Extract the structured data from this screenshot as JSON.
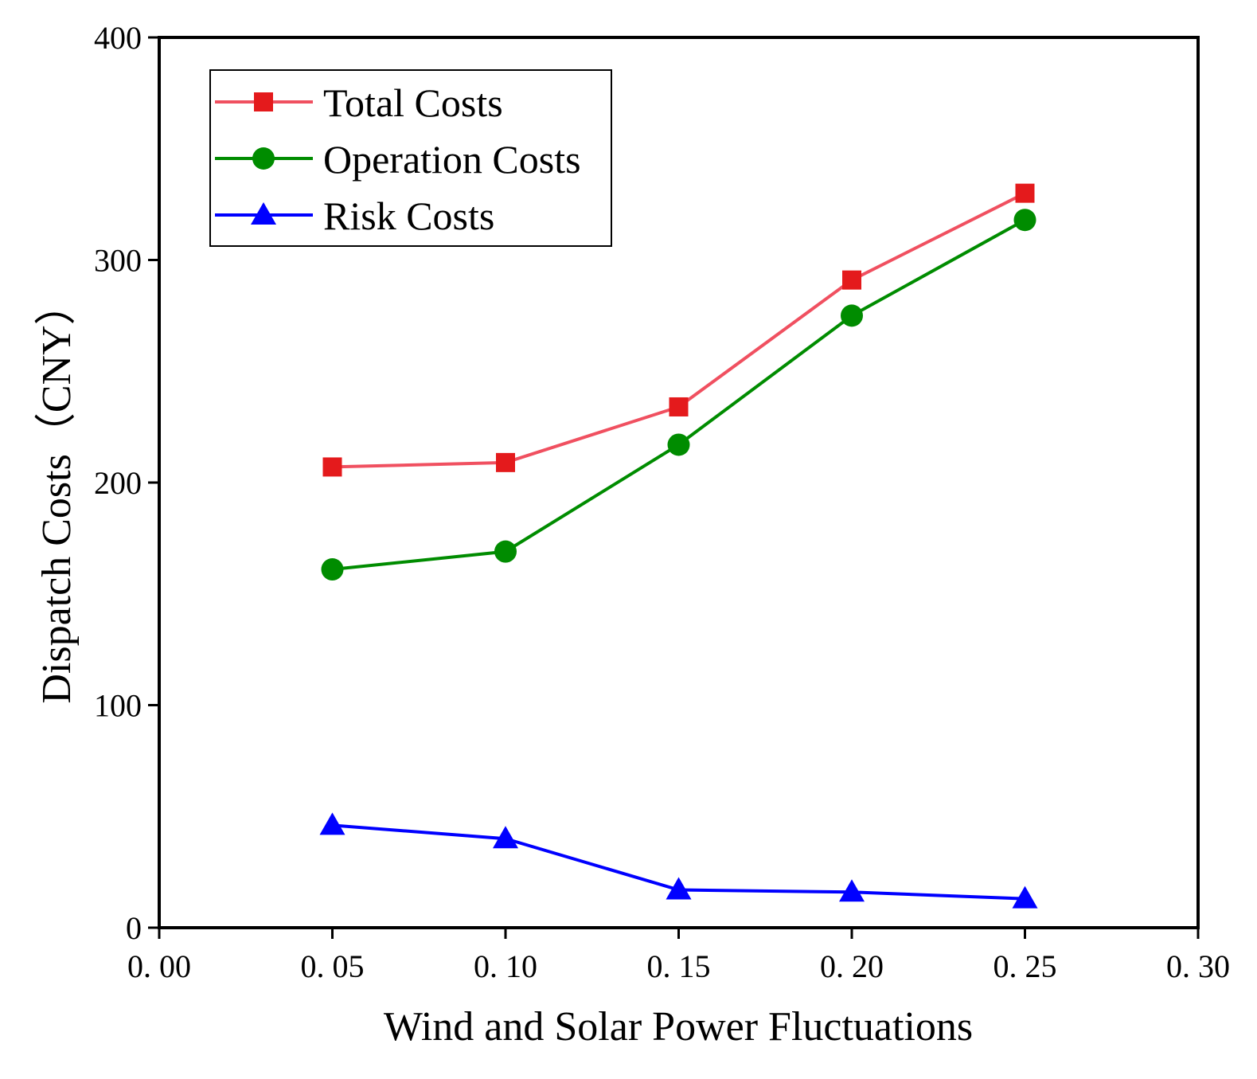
{
  "chart_data": {
    "type": "line",
    "title": "",
    "xlabel": "Wind and Solar Power Fluctuations",
    "ylabel": "Dispatch Costs（CNY）",
    "xlim": [
      0.0,
      0.3
    ],
    "ylim": [
      0,
      400
    ],
    "xticks": [
      0.0,
      0.05,
      0.1,
      0.15,
      0.2,
      0.25,
      0.3
    ],
    "xtick_labels": [
      "0. 00",
      "0. 05",
      "0. 10",
      "0. 15",
      "0. 20",
      "0. 25",
      "0. 30"
    ],
    "yticks": [
      0,
      100,
      200,
      300,
      400
    ],
    "ytick_labels": [
      "0",
      "100",
      "200",
      "300",
      "400"
    ],
    "grid": false,
    "legend_position": "top-left",
    "x": [
      0.05,
      0.1,
      0.15,
      0.2,
      0.25
    ],
    "series": [
      {
        "name": "Total Costs",
        "color": "#e41a1c",
        "line_color": "#f05060",
        "marker": "square",
        "values": [
          207,
          209,
          234,
          291,
          330
        ]
      },
      {
        "name": "Operation Costs",
        "color": "#008c00",
        "line_color": "#008c00",
        "marker": "circle",
        "values": [
          161,
          169,
          217,
          275,
          318
        ]
      },
      {
        "name": "Risk Costs",
        "color": "#0000ff",
        "line_color": "#0000ff",
        "marker": "triangle",
        "values": [
          46,
          40,
          17,
          16,
          13
        ]
      }
    ]
  }
}
